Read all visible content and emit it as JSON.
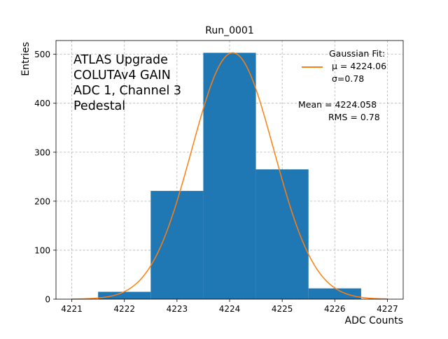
{
  "chart_data": {
    "type": "bar",
    "title": "Run_0001",
    "xlabel": "ADC Counts",
    "ylabel": "Entries",
    "xlim": [
      4220.7,
      4227.3
    ],
    "ylim": [
      0,
      528
    ],
    "x_ticks": [
      4221,
      4222,
      4223,
      4224,
      4225,
      4226,
      4227
    ],
    "y_ticks": [
      0,
      100,
      200,
      300,
      400,
      500
    ],
    "grid": true,
    "bins": [
      {
        "left": 4221.5,
        "right": 4222.5,
        "value": 15
      },
      {
        "left": 4222.5,
        "right": 4223.5,
        "value": 221
      },
      {
        "left": 4223.5,
        "right": 4224.5,
        "value": 503
      },
      {
        "left": 4224.5,
        "right": 4225.5,
        "value": 265
      },
      {
        "left": 4225.5,
        "right": 4226.5,
        "value": 22
      }
    ],
    "fit": {
      "amplitude": 503,
      "mu": 4224.06,
      "sigma": 0.78,
      "x_range": [
        4221,
        4227
      ]
    },
    "colors": {
      "bars": "#1f77b4",
      "fit": "#ff7f0e",
      "grid": "#b0b0b0"
    },
    "annotation_lines": [
      "ATLAS Upgrade",
      "COLUTAv4 GAIN",
      "ADC 1, Channel 3",
      "Pedestal"
    ],
    "legend": {
      "placement": "upper-right",
      "title": "Gaussian Fit:",
      "line1": "μ = 4224.06",
      "line2": "σ=0.78",
      "mean_text": "Mean = 4224.058",
      "rms_text": "RMS = 0.78"
    }
  }
}
